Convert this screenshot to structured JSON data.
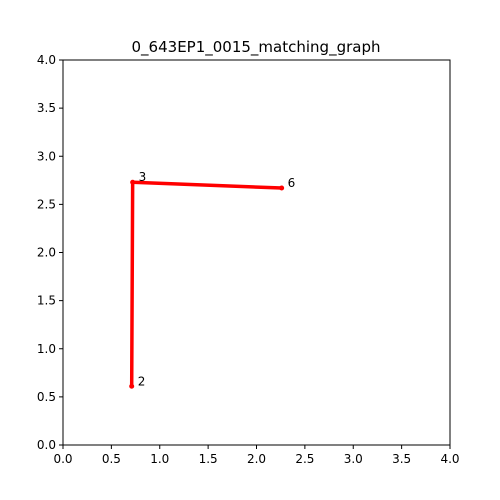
{
  "chart_data": {
    "type": "scatter",
    "title": "0_643EP1_0015_matching_graph",
    "xlabel": "",
    "ylabel": "",
    "xlim": [
      0.0,
      4.0
    ],
    "ylim": [
      0.0,
      4.0
    ],
    "grid": false,
    "x_ticks": [
      "0.0",
      "0.5",
      "1.0",
      "1.5",
      "2.0",
      "2.5",
      "3.0",
      "3.5",
      "4.0"
    ],
    "y_ticks": [
      "0.0",
      "0.5",
      "1.0",
      "1.5",
      "2.0",
      "2.5",
      "3.0",
      "3.5",
      "4.0"
    ],
    "edge_color": "#ff0000",
    "nodes": [
      {
        "id": "2",
        "label": "2",
        "x": 0.71,
        "y": 0.61
      },
      {
        "id": "3",
        "label": "3",
        "x": 0.72,
        "y": 2.73
      },
      {
        "id": "6",
        "label": "6",
        "x": 2.26,
        "y": 2.67
      }
    ],
    "edges": [
      {
        "from": "2",
        "to": "3"
      },
      {
        "from": "3",
        "to": "6"
      }
    ]
  }
}
